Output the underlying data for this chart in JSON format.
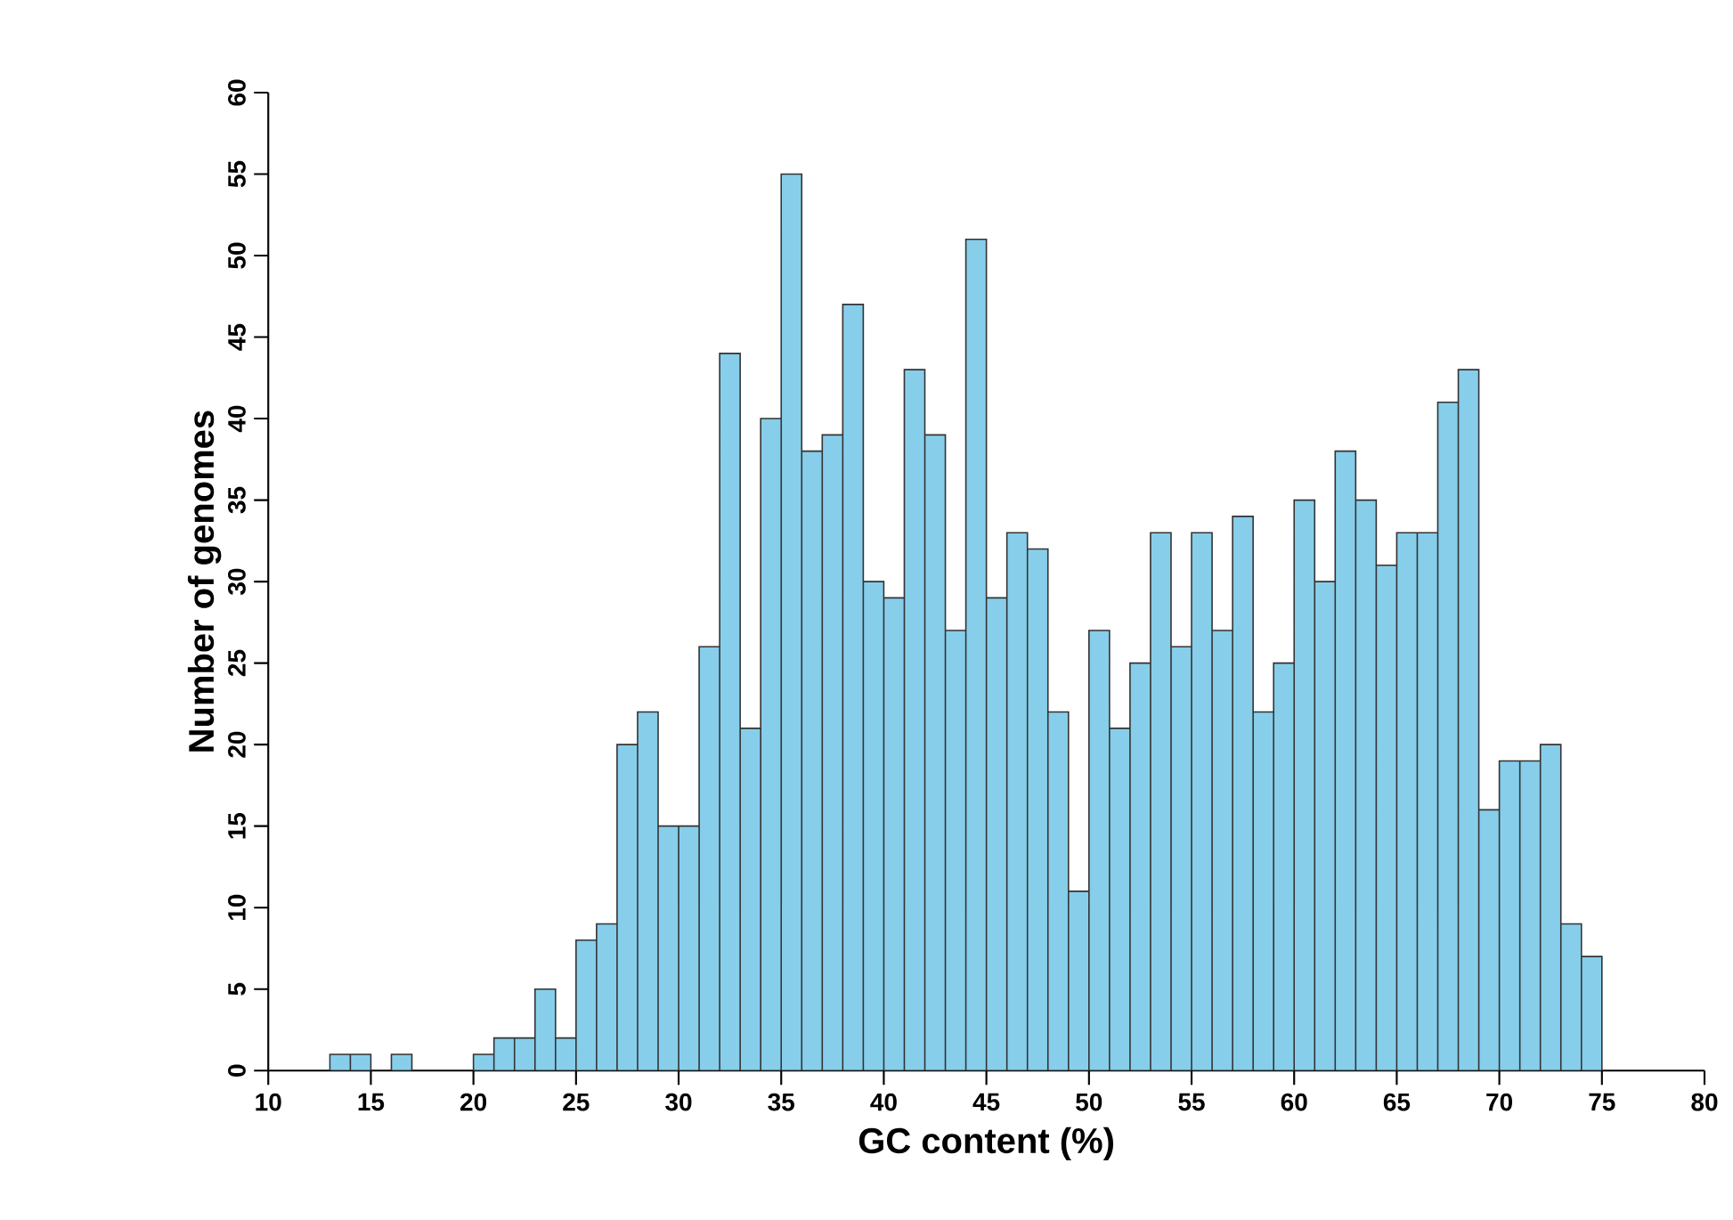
{
  "chart_data": {
    "type": "histogram",
    "xlabel": "GC content (%)",
    "ylabel": "Number of genomes",
    "color": "#87ceeb",
    "bins": [
      13,
      14,
      15,
      16,
      17,
      18,
      19,
      20,
      21,
      22,
      23,
      24,
      25,
      26,
      27,
      28,
      29,
      30,
      31,
      32,
      33,
      34,
      35,
      36,
      37,
      38,
      39,
      40,
      41,
      42,
      43,
      44,
      45,
      46,
      47,
      48,
      49,
      50,
      51,
      52,
      53,
      54,
      55,
      56,
      57,
      58,
      59,
      60,
      61,
      62,
      63,
      64,
      65,
      66,
      67,
      68,
      69,
      70,
      71,
      72,
      73,
      74,
      75
    ],
    "values": [
      1,
      1,
      0,
      1,
      0,
      0,
      0,
      1,
      2,
      2,
      5,
      2,
      8,
      9,
      20,
      22,
      15,
      15,
      26,
      44,
      21,
      40,
      55,
      38,
      39,
      47,
      30,
      29,
      43,
      39,
      27,
      51,
      29,
      33,
      32,
      22,
      11,
      27,
      21,
      25,
      33,
      26,
      33,
      27,
      34,
      22,
      25,
      35,
      30,
      38,
      35,
      31,
      33,
      33,
      41,
      43,
      16,
      19,
      19,
      20,
      9,
      7
    ],
    "xlim": [
      10,
      80
    ],
    "ylim": [
      0,
      60
    ],
    "xticks": [
      10,
      15,
      20,
      25,
      30,
      35,
      40,
      45,
      50,
      55,
      60,
      65,
      70,
      75,
      80
    ],
    "yticks": [
      0,
      5,
      10,
      15,
      20,
      25,
      30,
      35,
      40,
      45,
      50,
      55,
      60
    ],
    "grid": false
  }
}
